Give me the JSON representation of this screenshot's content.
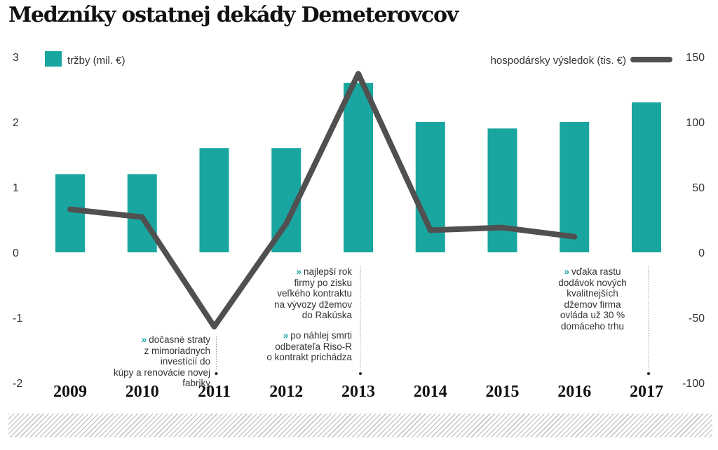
{
  "title": "Medzníky ostatnej dekády Demeterovcov",
  "legend": {
    "bars_label": "tržby (mil. €)",
    "line_label": "hospodársky výsledok (tis. €)"
  },
  "colors": {
    "bar": "#1aa6a0",
    "line": "#505050",
    "accent_chevron": "#1aa6a0"
  },
  "annotations": {
    "a2011": {
      "marker": "»",
      "lines": [
        "dočasné straty",
        "z mimoriadnych investícií do",
        "kúpy a renovácie novej fabriky"
      ]
    },
    "a2013a": {
      "marker": "»",
      "lines": [
        "najlepší rok",
        "firmy po zisku",
        "veľkého kontraktu",
        "na vývozy džemov",
        "do Rakúska"
      ]
    },
    "a2013b": {
      "marker": "»",
      "lines": [
        "po náhlej smrti",
        "odberateľa Riso-R",
        "o kontrakt prichádza"
      ]
    },
    "a2017": {
      "marker": "»",
      "lines": [
        "vďaka rastu",
        "dodávok nových",
        "kvalitnejších",
        "džemov firma",
        "ovláda už 30 %",
        "domáceho trhu"
      ]
    }
  },
  "chart_data": {
    "type": "bar",
    "categories": [
      "2009",
      "2010",
      "2011",
      "2012",
      "2013",
      "2014",
      "2015",
      "2016",
      "2017"
    ],
    "series": [
      {
        "name": "tržby (mil. €)",
        "type": "bar",
        "axis": "left",
        "values": [
          1.2,
          1.2,
          1.6,
          1.6,
          2.6,
          2.0,
          1.9,
          2.0,
          2.3
        ]
      },
      {
        "name": "hospodársky výsledok (tis. €)",
        "type": "line",
        "axis": "right",
        "values": [
          33,
          27,
          -57,
          22,
          137,
          17,
          19,
          12,
          null
        ]
      }
    ],
    "left_axis": {
      "min": -2,
      "max": 3,
      "ticks": [
        "3",
        "2",
        "1",
        "0",
        "-1",
        "-2"
      ]
    },
    "right_axis": {
      "min": -100,
      "max": 150,
      "ticks": [
        "150",
        "100",
        "50",
        "0",
        "-50",
        "-100"
      ]
    },
    "grid": false,
    "legend_position": "top"
  }
}
